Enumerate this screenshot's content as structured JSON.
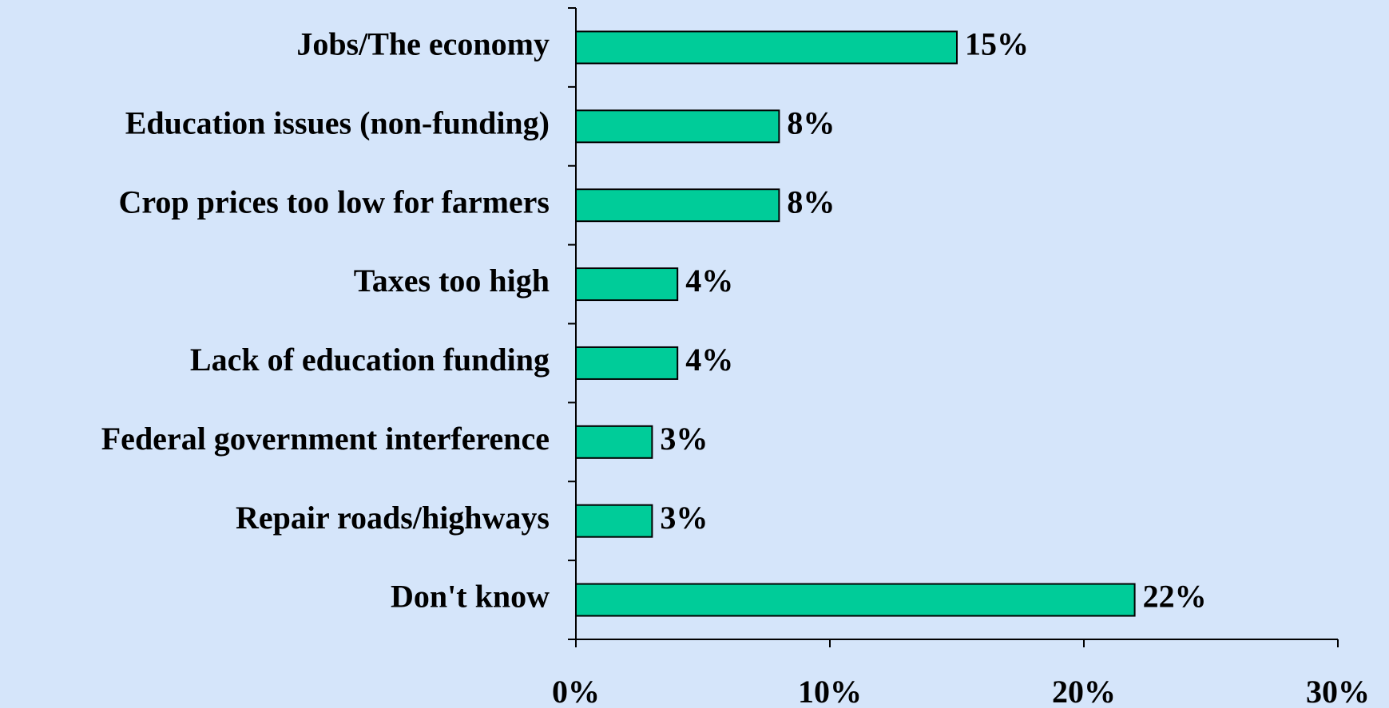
{
  "chart_data": {
    "type": "bar",
    "orientation": "horizontal",
    "categories": [
      "Jobs/The economy",
      "Education issues (non-funding)",
      "Crop prices too low for farmers",
      "Taxes too high",
      "Lack of education funding",
      "Federal government interference",
      "Repair roads/highways",
      "Don't know"
    ],
    "values": [
      15,
      8,
      8,
      4,
      4,
      3,
      3,
      22
    ],
    "value_labels": [
      "15%",
      "8%",
      "8%",
      "4%",
      "4%",
      "3%",
      "3%",
      "22%"
    ],
    "color": "#00cc99",
    "xlim": [
      0,
      30
    ],
    "xticks": [
      {
        "value": 0,
        "label": "0%"
      },
      {
        "value": 10,
        "label": "10%"
      },
      {
        "value": 20,
        "label": "20%"
      },
      {
        "value": 30,
        "label": "30%"
      }
    ],
    "grid": false
  }
}
